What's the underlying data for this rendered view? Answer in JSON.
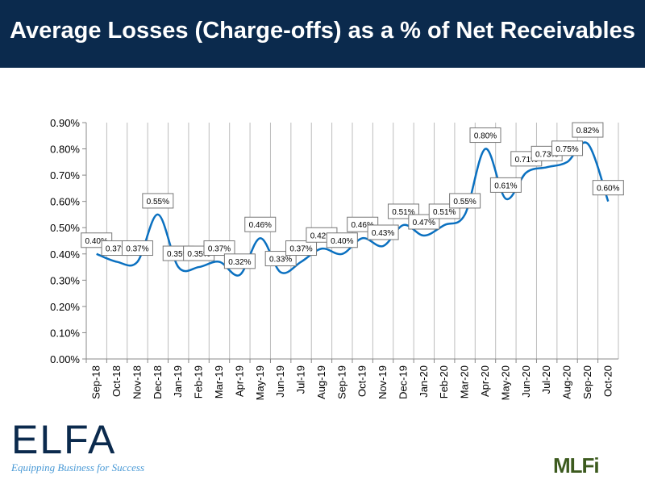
{
  "title": "Average Losses (Charge-offs) as a % of Net Receivables",
  "logos": {
    "left": "ELFA",
    "left_tagline": "Equipping Business for Success",
    "right": "MLFi"
  },
  "chart_data": {
    "type": "line",
    "title": "",
    "xlabel": "",
    "ylabel": "",
    "ylim": [
      0,
      0.9
    ],
    "yticks": [
      "0.00%",
      "0.10%",
      "0.20%",
      "0.30%",
      "0.40%",
      "0.50%",
      "0.60%",
      "0.70%",
      "0.80%",
      "0.90%"
    ],
    "grid": "vertical",
    "line_color": "#0a70c0",
    "categories": [
      "Sep-18",
      "Oct-18",
      "Nov-18",
      "Dec-18",
      "Jan-19",
      "Feb-19",
      "Mar-19",
      "Apr-19",
      "May-19",
      "Jun-19",
      "Jul-19",
      "Aug-19",
      "Sep-19",
      "Oct-19",
      "Nov-19",
      "Dec-19",
      "Jan-20",
      "Feb-20",
      "Mar-20",
      "Apr-20",
      "May-20",
      "Jun-20",
      "Jul-20",
      "Aug-20",
      "Sep-20",
      "Oct-20"
    ],
    "values": [
      0.4,
      0.37,
      0.37,
      0.55,
      0.35,
      0.35,
      0.37,
      0.32,
      0.46,
      0.33,
      0.37,
      0.42,
      0.4,
      0.46,
      0.43,
      0.51,
      0.47,
      0.51,
      0.55,
      0.8,
      0.61,
      0.71,
      0.73,
      0.75,
      0.82,
      0.6
    ],
    "data_labels": [
      "0.40%",
      "0.37%",
      "0.37%",
      "0.55%",
      "0.35%",
      "0.35%",
      "0.37%",
      "0.32%",
      "0.46%",
      "0.33%",
      "0.37%",
      "0.42%",
      "0.40%",
      "0.46%",
      "0.43%",
      "0.51%",
      "0.47%",
      "0.51%",
      "0.55%",
      "0.80%",
      "0.61%",
      "0.71%",
      "0.73%",
      "0.75%",
      "0.82%",
      "0.60%"
    ]
  }
}
